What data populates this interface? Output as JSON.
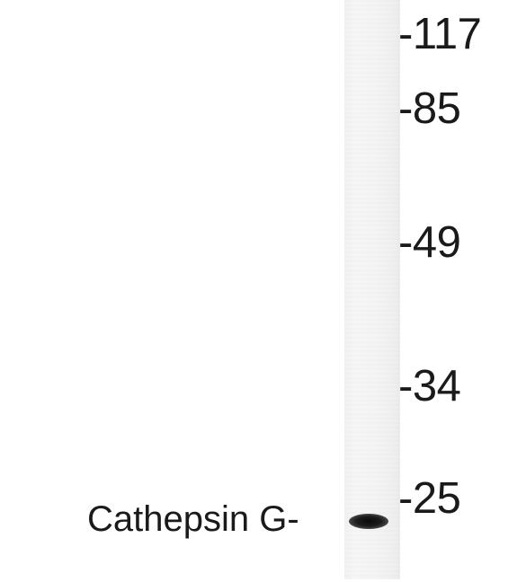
{
  "blot": {
    "markers": [
      {
        "label": "-117",
        "kda": 117
      },
      {
        "label": "-85",
        "kda": 85
      },
      {
        "label": "-49",
        "kda": 49
      },
      {
        "label": "-34",
        "kda": 34
      },
      {
        "label": "-25",
        "kda": 25
      }
    ],
    "protein_label": "Cathepsin G-",
    "lane_color": "#f3f3f3",
    "band_color": "#111111"
  }
}
